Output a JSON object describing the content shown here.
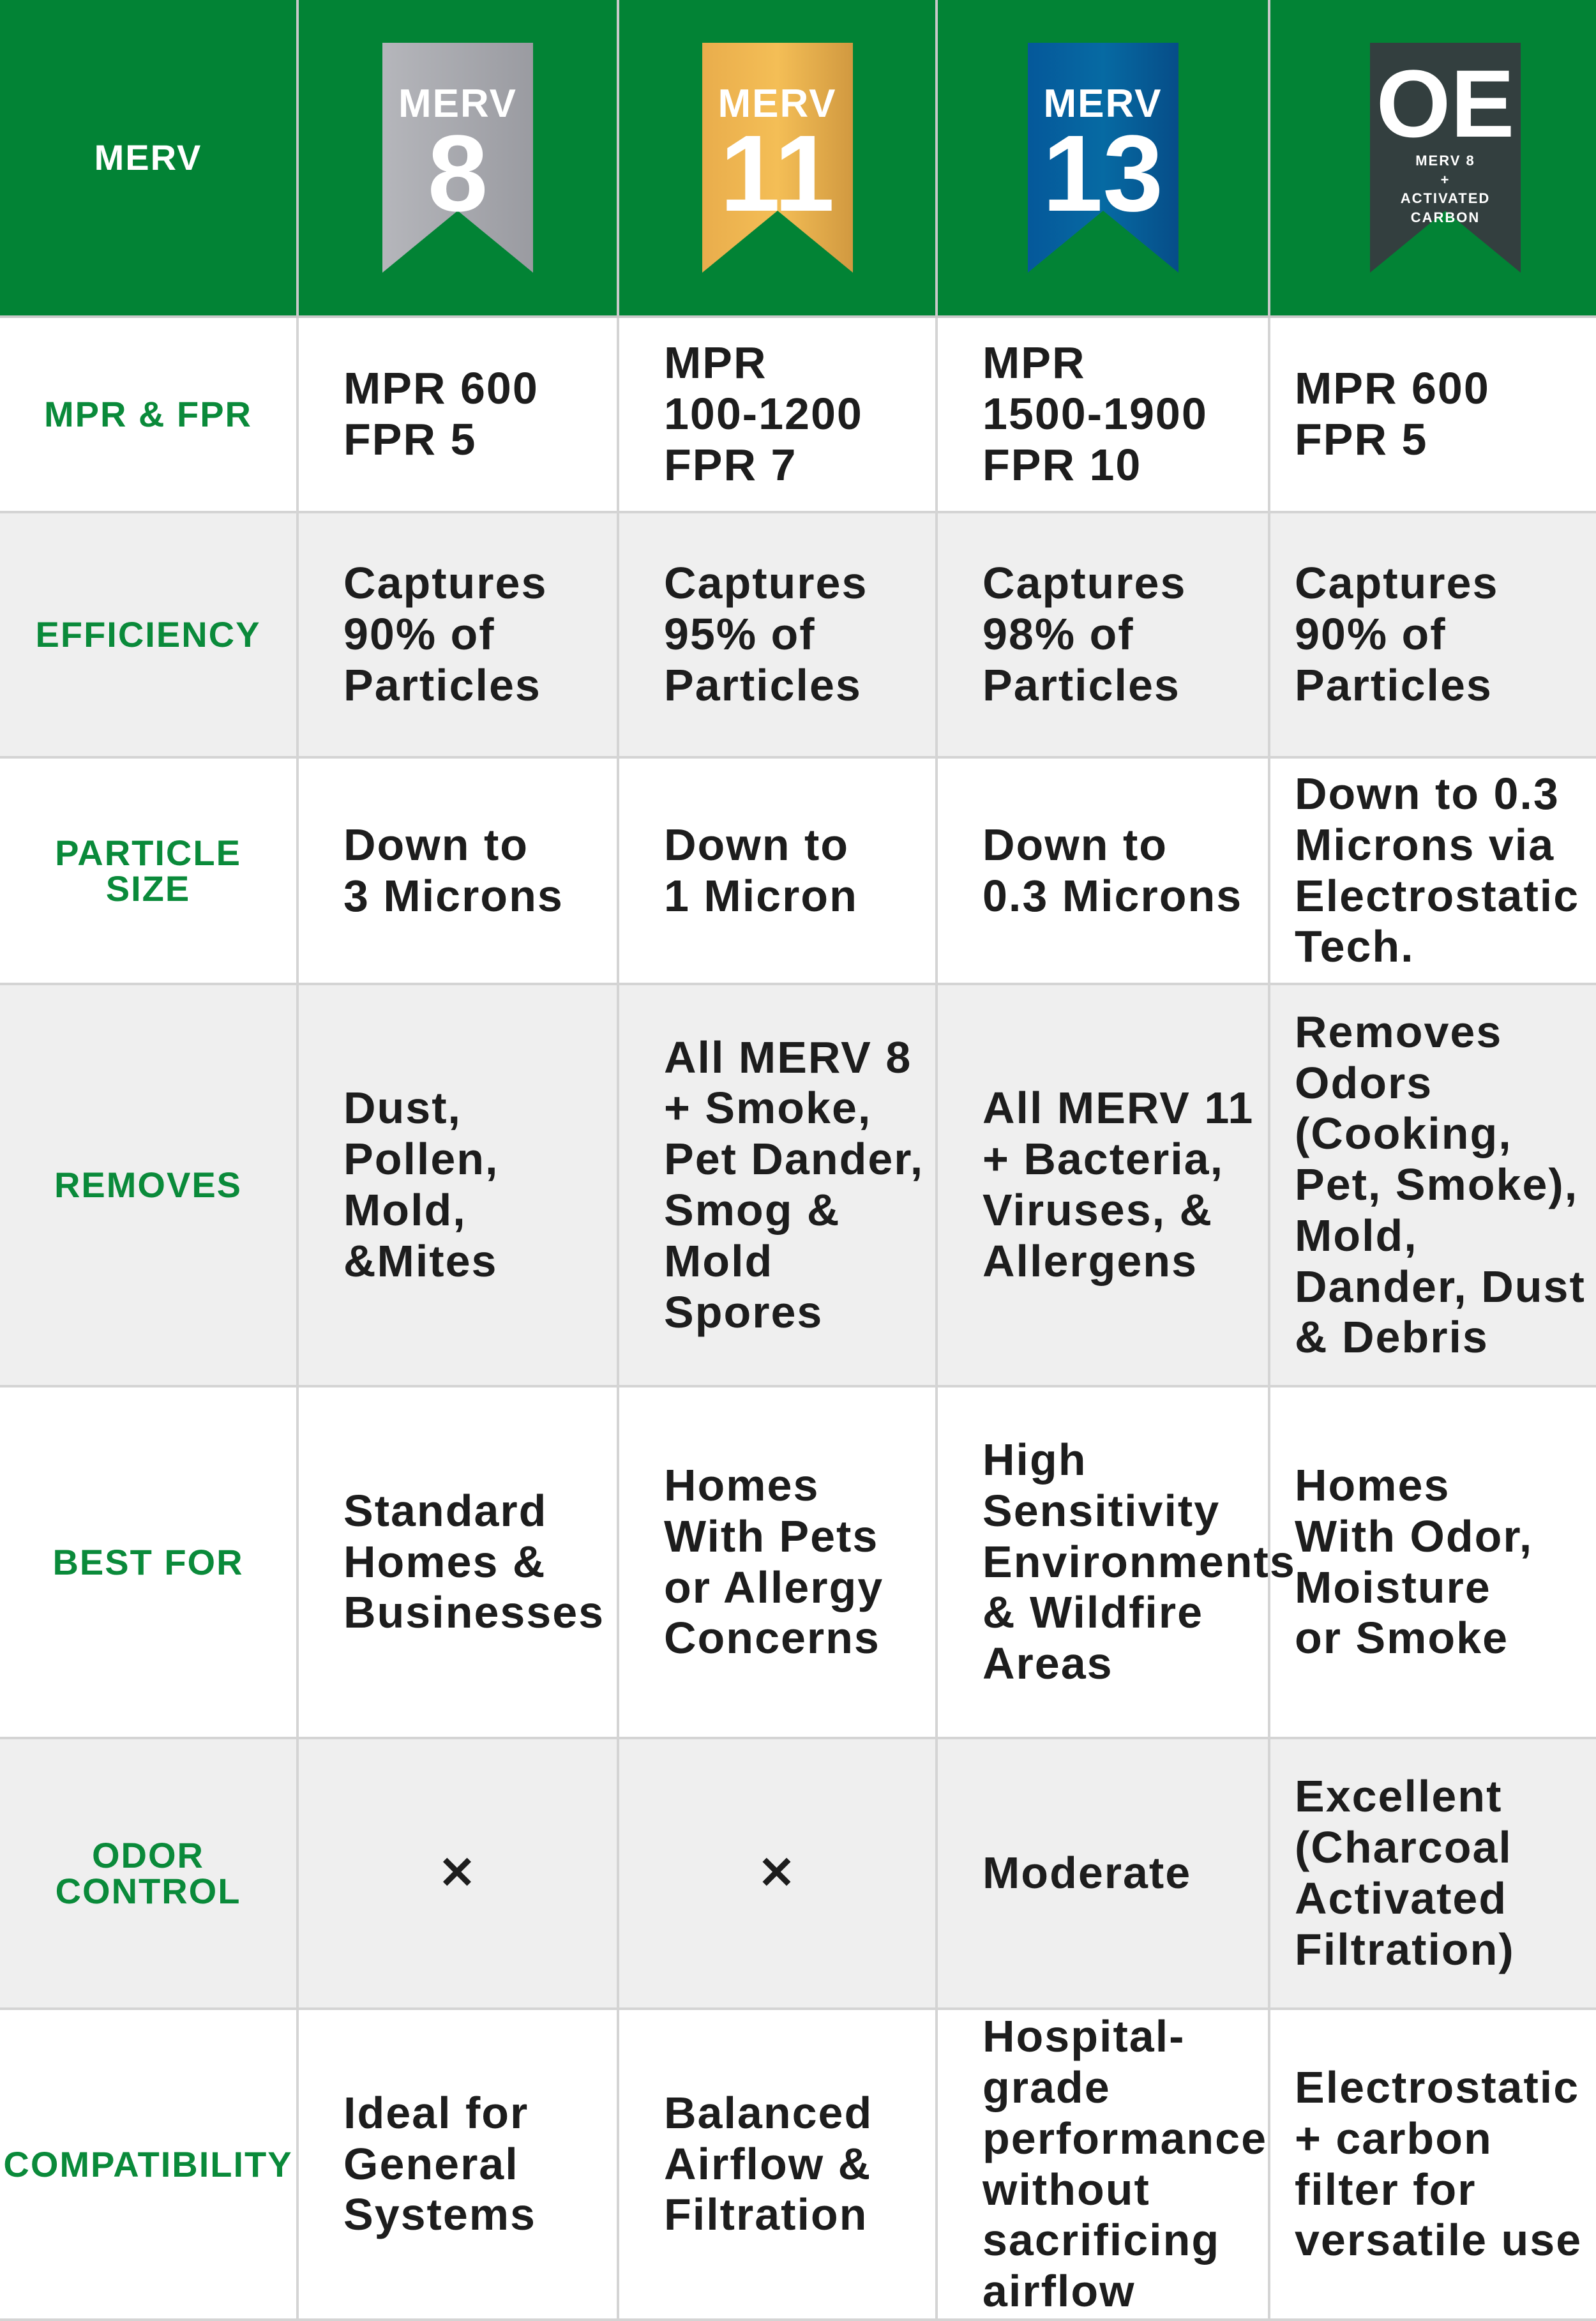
{
  "header": {
    "label": "MERV",
    "badges": [
      {
        "top": "MERV",
        "main": "8",
        "color": "#a9aab0"
      },
      {
        "top": "MERV",
        "main": "11",
        "color": "#f0b64d"
      },
      {
        "top": "MERV",
        "main": "13",
        "color": "#035f9b"
      },
      {
        "main": "OE",
        "lines": [
          "MERV 8",
          "+",
          "ACTIVATED",
          "CARBON"
        ],
        "color": "#333f3f"
      }
    ]
  },
  "rows": [
    {
      "label": [
        "MPR & FPR"
      ],
      "cells": [
        [
          "MPR 600",
          "FPR 5"
        ],
        [
          "MPR",
          "100-1200",
          "FPR 7"
        ],
        [
          "MPR",
          "1500-1900",
          "FPR 10"
        ],
        [
          "MPR 600",
          "FPR 5"
        ]
      ]
    },
    {
      "label": [
        "EFFICIENCY"
      ],
      "cells": [
        [
          "Captures",
          "90% of",
          "Particles"
        ],
        [
          "Captures",
          "95% of",
          "Particles"
        ],
        [
          "Captures",
          "98% of",
          "Particles"
        ],
        [
          "Captures",
          "90% of",
          "Particles"
        ]
      ]
    },
    {
      "label": [
        "PARTICLE",
        "SIZE"
      ],
      "cells": [
        [
          "Down to",
          "3 Microns"
        ],
        [
          "Down to",
          "1 Micron"
        ],
        [
          "Down to",
          "0.3 Microns"
        ],
        [
          "Down to 0.3",
          "Microns via",
          "Electrostatic",
          "Tech."
        ]
      ]
    },
    {
      "label": [
        "REMOVES"
      ],
      "cells": [
        [
          "Dust, Pollen,",
          "Mold, &Mites"
        ],
        [
          "All MERV 8",
          "+ Smoke,",
          "Pet Dander,",
          "Smog &",
          "Mold Spores"
        ],
        [
          "All MERV 11",
          "+ Bacteria,",
          "Viruses, &",
          "Allergens"
        ],
        [
          "Removes",
          "Odors",
          "(Cooking,",
          "Pet, Smoke),",
          "Mold,",
          "Dander, Dust",
          "& Debris"
        ]
      ]
    },
    {
      "label": [
        "BEST FOR"
      ],
      "cells": [
        [
          "Standard",
          "Homes &",
          "Businesses"
        ],
        [
          "Homes",
          "With Pets",
          "or Allergy",
          "Concerns"
        ],
        [
          "High",
          "Sensitivity",
          "Environments",
          "& Wildfire",
          "Areas"
        ],
        [
          "Homes",
          "With Odor,",
          "Moisture",
          "or Smoke"
        ]
      ]
    },
    {
      "label": [
        "ODOR",
        "CONTROL"
      ],
      "cells": [
        [
          "✕"
        ],
        [
          "✕"
        ],
        [
          "Moderate"
        ],
        [
          "Excellent",
          "(Charcoal",
          "Activated",
          "Filtration)"
        ]
      ]
    },
    {
      "label": [
        "COMPATIBILITY"
      ],
      "cells": [
        [
          "Ideal for",
          "General",
          "Systems"
        ],
        [
          "Balanced",
          "Airflow &",
          "Filtration"
        ],
        [
          "Hospital-grade",
          "performance",
          "without",
          "sacrificing",
          "airflow"
        ],
        [
          "Electrostatic",
          "+ carbon",
          "filter for",
          "versatile use"
        ]
      ]
    }
  ]
}
